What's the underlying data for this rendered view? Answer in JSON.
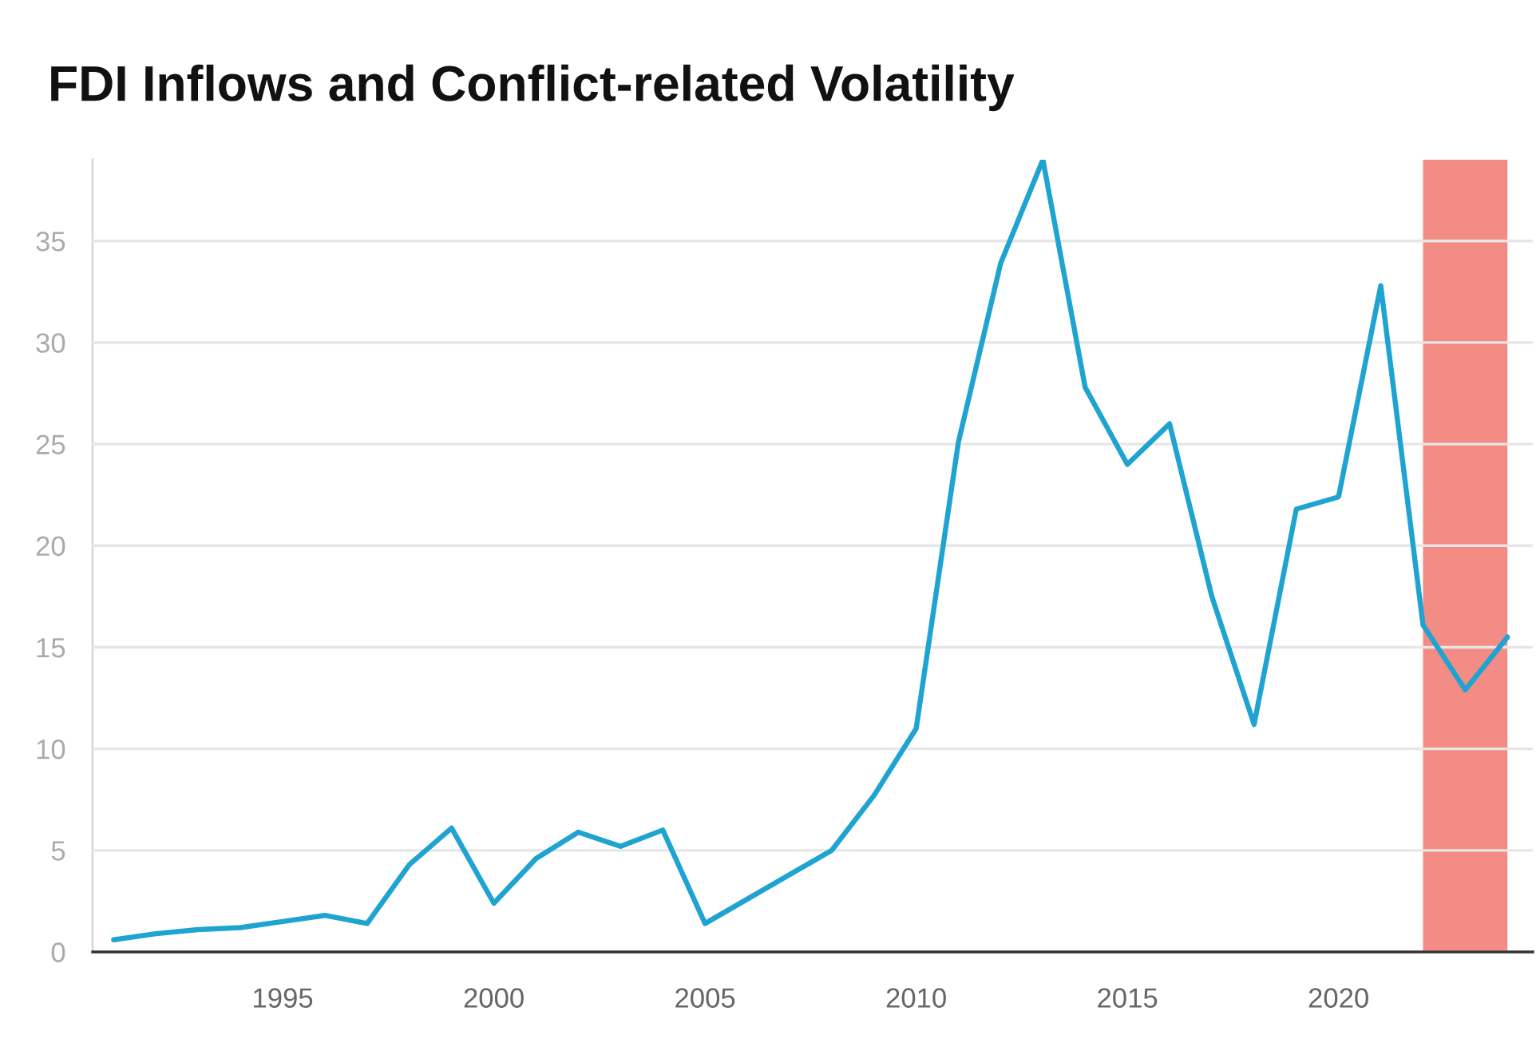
{
  "chart_data": {
    "type": "line",
    "title": "FDI Inflows and Conflict-related Volatility",
    "x": [
      1991,
      1992,
      1993,
      1994,
      1995,
      1996,
      1997,
      1998,
      1999,
      2000,
      2001,
      2002,
      2003,
      2004,
      2005,
      2006,
      2007,
      2008,
      2009,
      2010,
      2011,
      2012,
      2013,
      2014,
      2015,
      2016,
      2017,
      2018,
      2019,
      2020,
      2021,
      2022,
      2023,
      2024
    ],
    "series": [
      {
        "color": "#1fa3d1",
        "values": [
          0.6,
          0.9,
          1.1,
          1.2,
          1.5,
          1.8,
          1.4,
          4.3,
          6.1,
          2.4,
          4.6,
          5.9,
          5.2,
          6.0,
          1.4,
          2.6,
          3.8,
          5.0,
          7.7,
          11.0,
          25.1,
          33.9,
          39.0,
          27.8,
          24.0,
          26.0,
          17.5,
          11.2,
          21.8,
          22.4,
          32.8,
          16.1,
          12.9,
          15.5
        ]
      }
    ],
    "xlim": [
      1990.5,
      2024.6
    ],
    "xticks": [
      1995,
      2000,
      2005,
      2010,
      2015,
      2020
    ],
    "ylim": [
      0,
      39
    ],
    "yticks": [
      0,
      5,
      10,
      15,
      20,
      25,
      30,
      35
    ],
    "bands": [
      {
        "axis": "x",
        "from": 2022,
        "to": 2024,
        "color": "#f28c84"
      }
    ],
    "grid": "y",
    "legend": false,
    "marker": "none",
    "line_style": "solid"
  }
}
